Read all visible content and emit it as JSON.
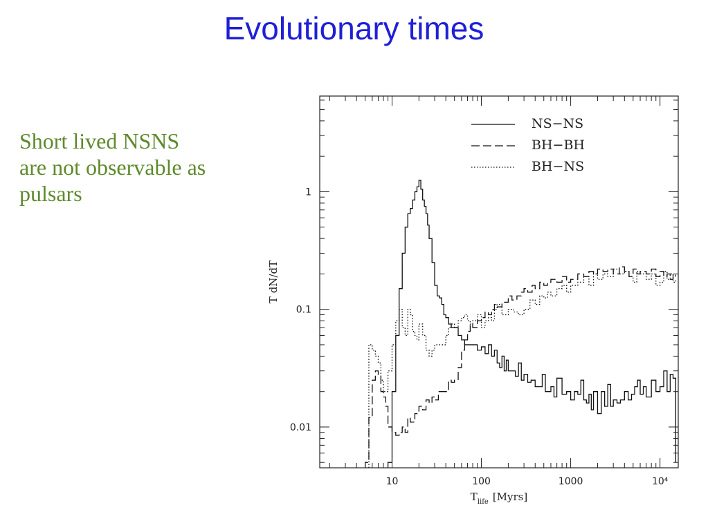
{
  "slide": {
    "title": "Evolutionary times",
    "note_lines": [
      "Short lived NSNS",
      "are not observable as",
      "pulsars"
    ]
  },
  "chart_data": {
    "type": "line",
    "xlabel_main": "T",
    "xlabel_sub": "life",
    "xlabel_unit": "[Myrs]",
    "ylabel": "T dN/dT",
    "x_scale": "log",
    "y_scale": "log",
    "xlim": [
      1.55,
      16000
    ],
    "ylim": [
      0.0045,
      6.5
    ],
    "x_ticks": [
      {
        "value": 10,
        "label": "10"
      },
      {
        "value": 100,
        "label": "100"
      },
      {
        "value": 1000,
        "label": "1000"
      },
      {
        "value": 10000,
        "label": "10⁴"
      }
    ],
    "y_ticks": [
      {
        "value": 0.01,
        "label": "0.01"
      },
      {
        "value": 0.1,
        "label": "0.1"
      },
      {
        "value": 1,
        "label": "1"
      }
    ],
    "legend_position": "top-right",
    "series": [
      {
        "name": "NS−NS",
        "style": "solid",
        "x": [
          9,
          10,
          11,
          12,
          13,
          14,
          15,
          16,
          17,
          18,
          19,
          20,
          21,
          22,
          23,
          24,
          25,
          26,
          28,
          30,
          32,
          34,
          36,
          38,
          40,
          43,
          46,
          50,
          55,
          60,
          65,
          70,
          75,
          80,
          90,
          100,
          110,
          120,
          130,
          140,
          150,
          160,
          170,
          180,
          190,
          200,
          220,
          240,
          260,
          280,
          300,
          330,
          360,
          400,
          440,
          480,
          520,
          560,
          600,
          650,
          700,
          800,
          900,
          1000,
          1100,
          1200,
          1300,
          1400,
          1500,
          1600,
          1700,
          1800,
          2000,
          2200,
          2400,
          2600,
          2800,
          3000,
          3300,
          3600,
          4000,
          4400,
          4800,
          5200,
          5600,
          6000,
          6500,
          7000,
          8000,
          9000,
          10000,
          11000,
          12000,
          13000,
          14000,
          15000
        ],
        "y": [
          0.005,
          0.02,
          0.06,
          0.15,
          0.3,
          0.5,
          0.65,
          0.72,
          0.85,
          1.0,
          1.1,
          1.25,
          1.05,
          0.85,
          0.75,
          0.65,
          0.52,
          0.4,
          0.25,
          0.16,
          0.13,
          0.125,
          0.11,
          0.09,
          0.085,
          0.075,
          0.07,
          0.07,
          0.06,
          0.055,
          0.05,
          0.05,
          0.05,
          0.05,
          0.045,
          0.048,
          0.042,
          0.05,
          0.04,
          0.045,
          0.035,
          0.032,
          0.04,
          0.03,
          0.037,
          0.03,
          0.03,
          0.027,
          0.035,
          0.025,
          0.028,
          0.024,
          0.025,
          0.022,
          0.022,
          0.028,
          0.02,
          0.02,
          0.022,
          0.018,
          0.026,
          0.019,
          0.02,
          0.017,
          0.02,
          0.019,
          0.025,
          0.017,
          0.016,
          0.019,
          0.014,
          0.02,
          0.013,
          0.02,
          0.015,
          0.023,
          0.015,
          0.017,
          0.016,
          0.017,
          0.02,
          0.017,
          0.019,
          0.022,
          0.025,
          0.019,
          0.022,
          0.018,
          0.025,
          0.02,
          0.022,
          0.03,
          0.02,
          0.028,
          0.026,
          0.005
        ]
      },
      {
        "name": "BH−BH",
        "style": "dashed",
        "x": [
          5,
          5.5,
          6,
          6.5,
          7,
          7.5,
          8,
          8.5,
          9,
          10,
          11,
          12,
          13,
          14,
          15,
          16,
          18,
          20,
          22,
          24,
          26,
          28,
          30,
          33,
          36,
          40,
          43,
          46,
          50,
          55,
          60,
          65,
          70,
          75,
          80,
          90,
          100,
          110,
          120,
          130,
          140,
          150,
          170,
          200,
          220,
          250,
          280,
          300,
          330,
          370,
          400,
          450,
          500,
          550,
          600,
          700,
          800,
          900,
          1000,
          1200,
          1400,
          1600,
          1800,
          2000,
          2300,
          2600,
          3000,
          3500,
          4000,
          4500,
          5000,
          5500,
          6000,
          7000,
          8000,
          9000,
          10000,
          11000,
          12000,
          13000,
          14000,
          15000
        ],
        "y": [
          0.005,
          0.012,
          0.025,
          0.03,
          0.028,
          0.02,
          0.018,
          0.015,
          0.01,
          0.009,
          0.0085,
          0.009,
          0.01,
          0.009,
          0.012,
          0.011,
          0.013,
          0.015,
          0.014,
          0.017,
          0.016,
          0.018,
          0.017,
          0.02,
          0.02,
          0.02,
          0.025,
          0.024,
          0.025,
          0.032,
          0.045,
          0.055,
          0.065,
          0.075,
          0.07,
          0.08,
          0.085,
          0.095,
          0.09,
          0.1,
          0.11,
          0.105,
          0.115,
          0.13,
          0.12,
          0.13,
          0.14,
          0.15,
          0.14,
          0.16,
          0.15,
          0.17,
          0.16,
          0.17,
          0.18,
          0.17,
          0.19,
          0.17,
          0.18,
          0.2,
          0.19,
          0.21,
          0.2,
          0.22,
          0.21,
          0.22,
          0.2,
          0.23,
          0.21,
          0.19,
          0.22,
          0.2,
          0.21,
          0.2,
          0.22,
          0.19,
          0.21,
          0.19,
          0.2,
          0.18,
          0.2,
          0.19
        ]
      },
      {
        "name": "BH−NS",
        "style": "dotted",
        "x": [
          5.5,
          6,
          6.5,
          7,
          7.5,
          8,
          9,
          10,
          11,
          12,
          13,
          14,
          15,
          16,
          17,
          18,
          19,
          20,
          22,
          24,
          26,
          28,
          30,
          33,
          36,
          40,
          43,
          46,
          50,
          55,
          60,
          65,
          70,
          75,
          80,
          90,
          100,
          110,
          120,
          130,
          140,
          150,
          170,
          200,
          230,
          260,
          300,
          350,
          400,
          450,
          500,
          550,
          600,
          700,
          800,
          900,
          1000,
          1200,
          1400,
          1600,
          1800,
          2000,
          2300,
          2600,
          3000,
          3500,
          4000,
          4500,
          5000,
          5500,
          6000,
          7000,
          8000,
          9000,
          10000,
          11000,
          12000,
          13000,
          14000,
          15000
        ],
        "y": [
          0.05,
          0.045,
          0.04,
          0.035,
          0.025,
          0.02,
          0.03,
          0.05,
          0.08,
          0.1,
          0.07,
          0.06,
          0.1,
          0.09,
          0.065,
          0.06,
          0.055,
          0.075,
          0.06,
          0.045,
          0.04,
          0.045,
          0.05,
          0.05,
          0.05,
          0.06,
          0.07,
          0.075,
          0.07,
          0.08,
          0.085,
          0.09,
          0.08,
          0.075,
          0.08,
          0.09,
          0.07,
          0.08,
          0.085,
          0.08,
          0.1,
          0.11,
          0.09,
          0.1,
          0.095,
          0.09,
          0.1,
          0.12,
          0.11,
          0.13,
          0.125,
          0.14,
          0.13,
          0.15,
          0.16,
          0.14,
          0.16,
          0.17,
          0.19,
          0.16,
          0.2,
          0.18,
          0.2,
          0.19,
          0.22,
          0.2,
          0.21,
          0.19,
          0.17,
          0.21,
          0.2,
          0.18,
          0.2,
          0.16,
          0.17,
          0.21,
          0.18,
          0.2,
          0.17,
          0.18
        ]
      }
    ]
  }
}
